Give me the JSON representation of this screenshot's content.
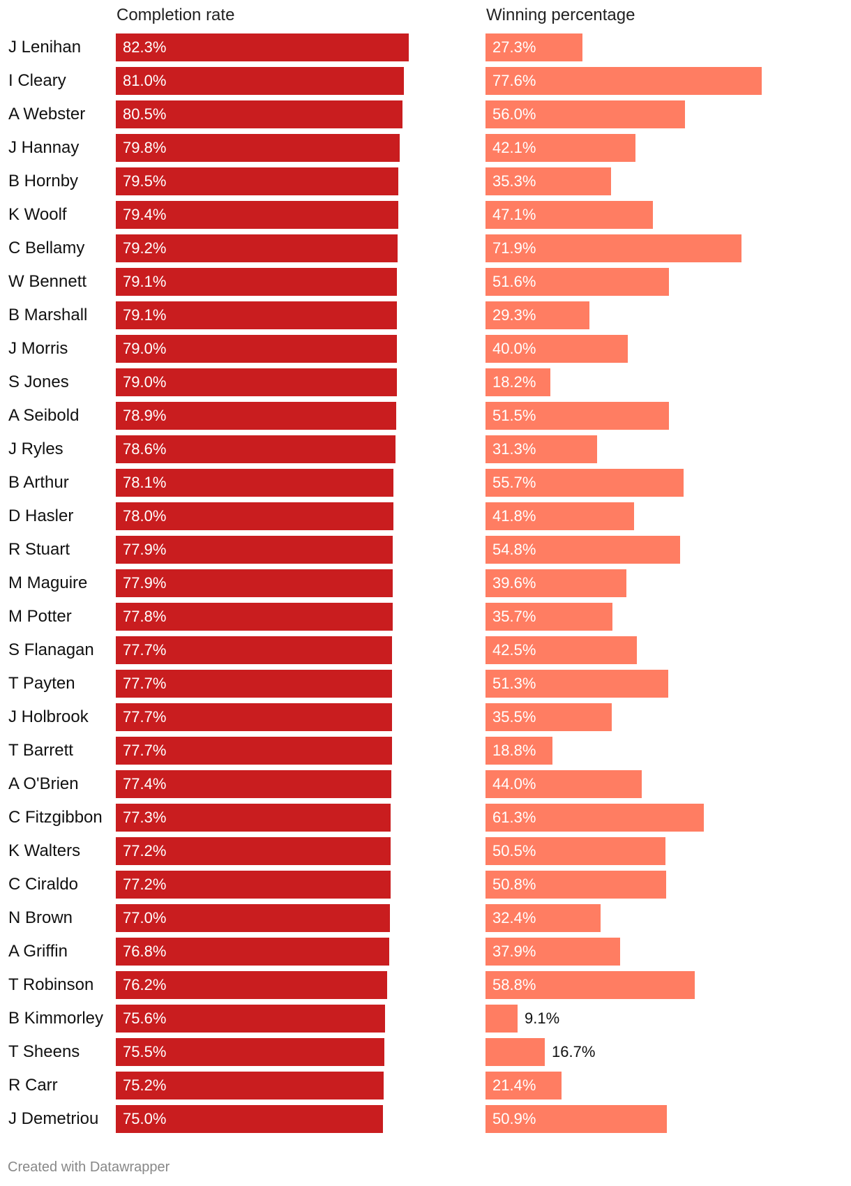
{
  "chart_data": {
    "type": "bar",
    "orientation": "horizontal",
    "column_headers": [
      "Completion rate",
      "Winning percentage"
    ],
    "categories": [
      "J Lenihan",
      "I Cleary",
      "A Webster",
      "J Hannay",
      "B Hornby",
      "K Woolf",
      "C Bellamy",
      "W Bennett",
      "B Marshall",
      "J Morris",
      "S Jones",
      "A Seibold",
      "J Ryles",
      "B Arthur",
      "D Hasler",
      "R Stuart",
      "M Maguire",
      "M Potter",
      "S Flanagan",
      "T Payten",
      "J Holbrook",
      "T Barrett",
      "A O'Brien",
      "C Fitzgibbon",
      "K Walters",
      "C Ciraldo",
      "N Brown",
      "A Griffin",
      "T Robinson",
      "B Kimmorley",
      "T Sheens",
      "R Carr",
      "J Demetriou"
    ],
    "series": [
      {
        "name": "Completion rate",
        "color": "#c91d1f",
        "labels": [
          "82.3%",
          "81.0%",
          "80.5%",
          "79.8%",
          "79.5%",
          "79.4%",
          "79.2%",
          "79.1%",
          "79.1%",
          "79.0%",
          "79.0%",
          "78.9%",
          "78.6%",
          "78.1%",
          "78.0%",
          "77.9%",
          "77.9%",
          "77.8%",
          "77.7%",
          "77.7%",
          "77.7%",
          "77.7%",
          "77.4%",
          "77.3%",
          "77.2%",
          "77.2%",
          "77.0%",
          "76.8%",
          "76.2%",
          "75.6%",
          "75.5%",
          "75.2%",
          "75.0%"
        ],
        "values": [
          82.3,
          81.0,
          80.5,
          79.8,
          79.5,
          79.4,
          79.2,
          79.1,
          79.1,
          79.0,
          79.0,
          78.9,
          78.6,
          78.1,
          78.0,
          77.9,
          77.9,
          77.8,
          77.7,
          77.7,
          77.7,
          77.7,
          77.4,
          77.3,
          77.2,
          77.2,
          77.0,
          76.8,
          76.2,
          75.6,
          75.5,
          75.2,
          75.0
        ],
        "xlim": [
          0,
          100
        ]
      },
      {
        "name": "Winning percentage",
        "color": "#ff7d62",
        "labels": [
          "27.3%",
          "77.6%",
          "56.0%",
          "42.1%",
          "35.3%",
          "47.1%",
          "71.9%",
          "51.6%",
          "29.3%",
          "40.0%",
          "18.2%",
          "51.5%",
          "31.3%",
          "55.7%",
          "41.8%",
          "54.8%",
          "39.6%",
          "35.7%",
          "42.5%",
          "51.3%",
          "35.5%",
          "18.8%",
          "44.0%",
          "61.3%",
          "50.5%",
          "50.8%",
          "32.4%",
          "37.9%",
          "58.8%",
          "9.1%",
          "16.7%",
          "21.4%",
          "50.9%"
        ],
        "values": [
          27.3,
          77.6,
          56.0,
          42.1,
          35.3,
          47.1,
          71.9,
          51.6,
          29.3,
          40.0,
          18.2,
          51.5,
          31.3,
          55.7,
          41.8,
          54.8,
          39.6,
          35.7,
          42.5,
          51.3,
          35.5,
          18.8,
          44.0,
          61.3,
          50.5,
          50.8,
          32.4,
          37.9,
          58.8,
          9.1,
          16.7,
          21.4,
          50.9
        ],
        "xlim": [
          0,
          100
        ]
      }
    ]
  },
  "footer": "Created with Datawrapper"
}
